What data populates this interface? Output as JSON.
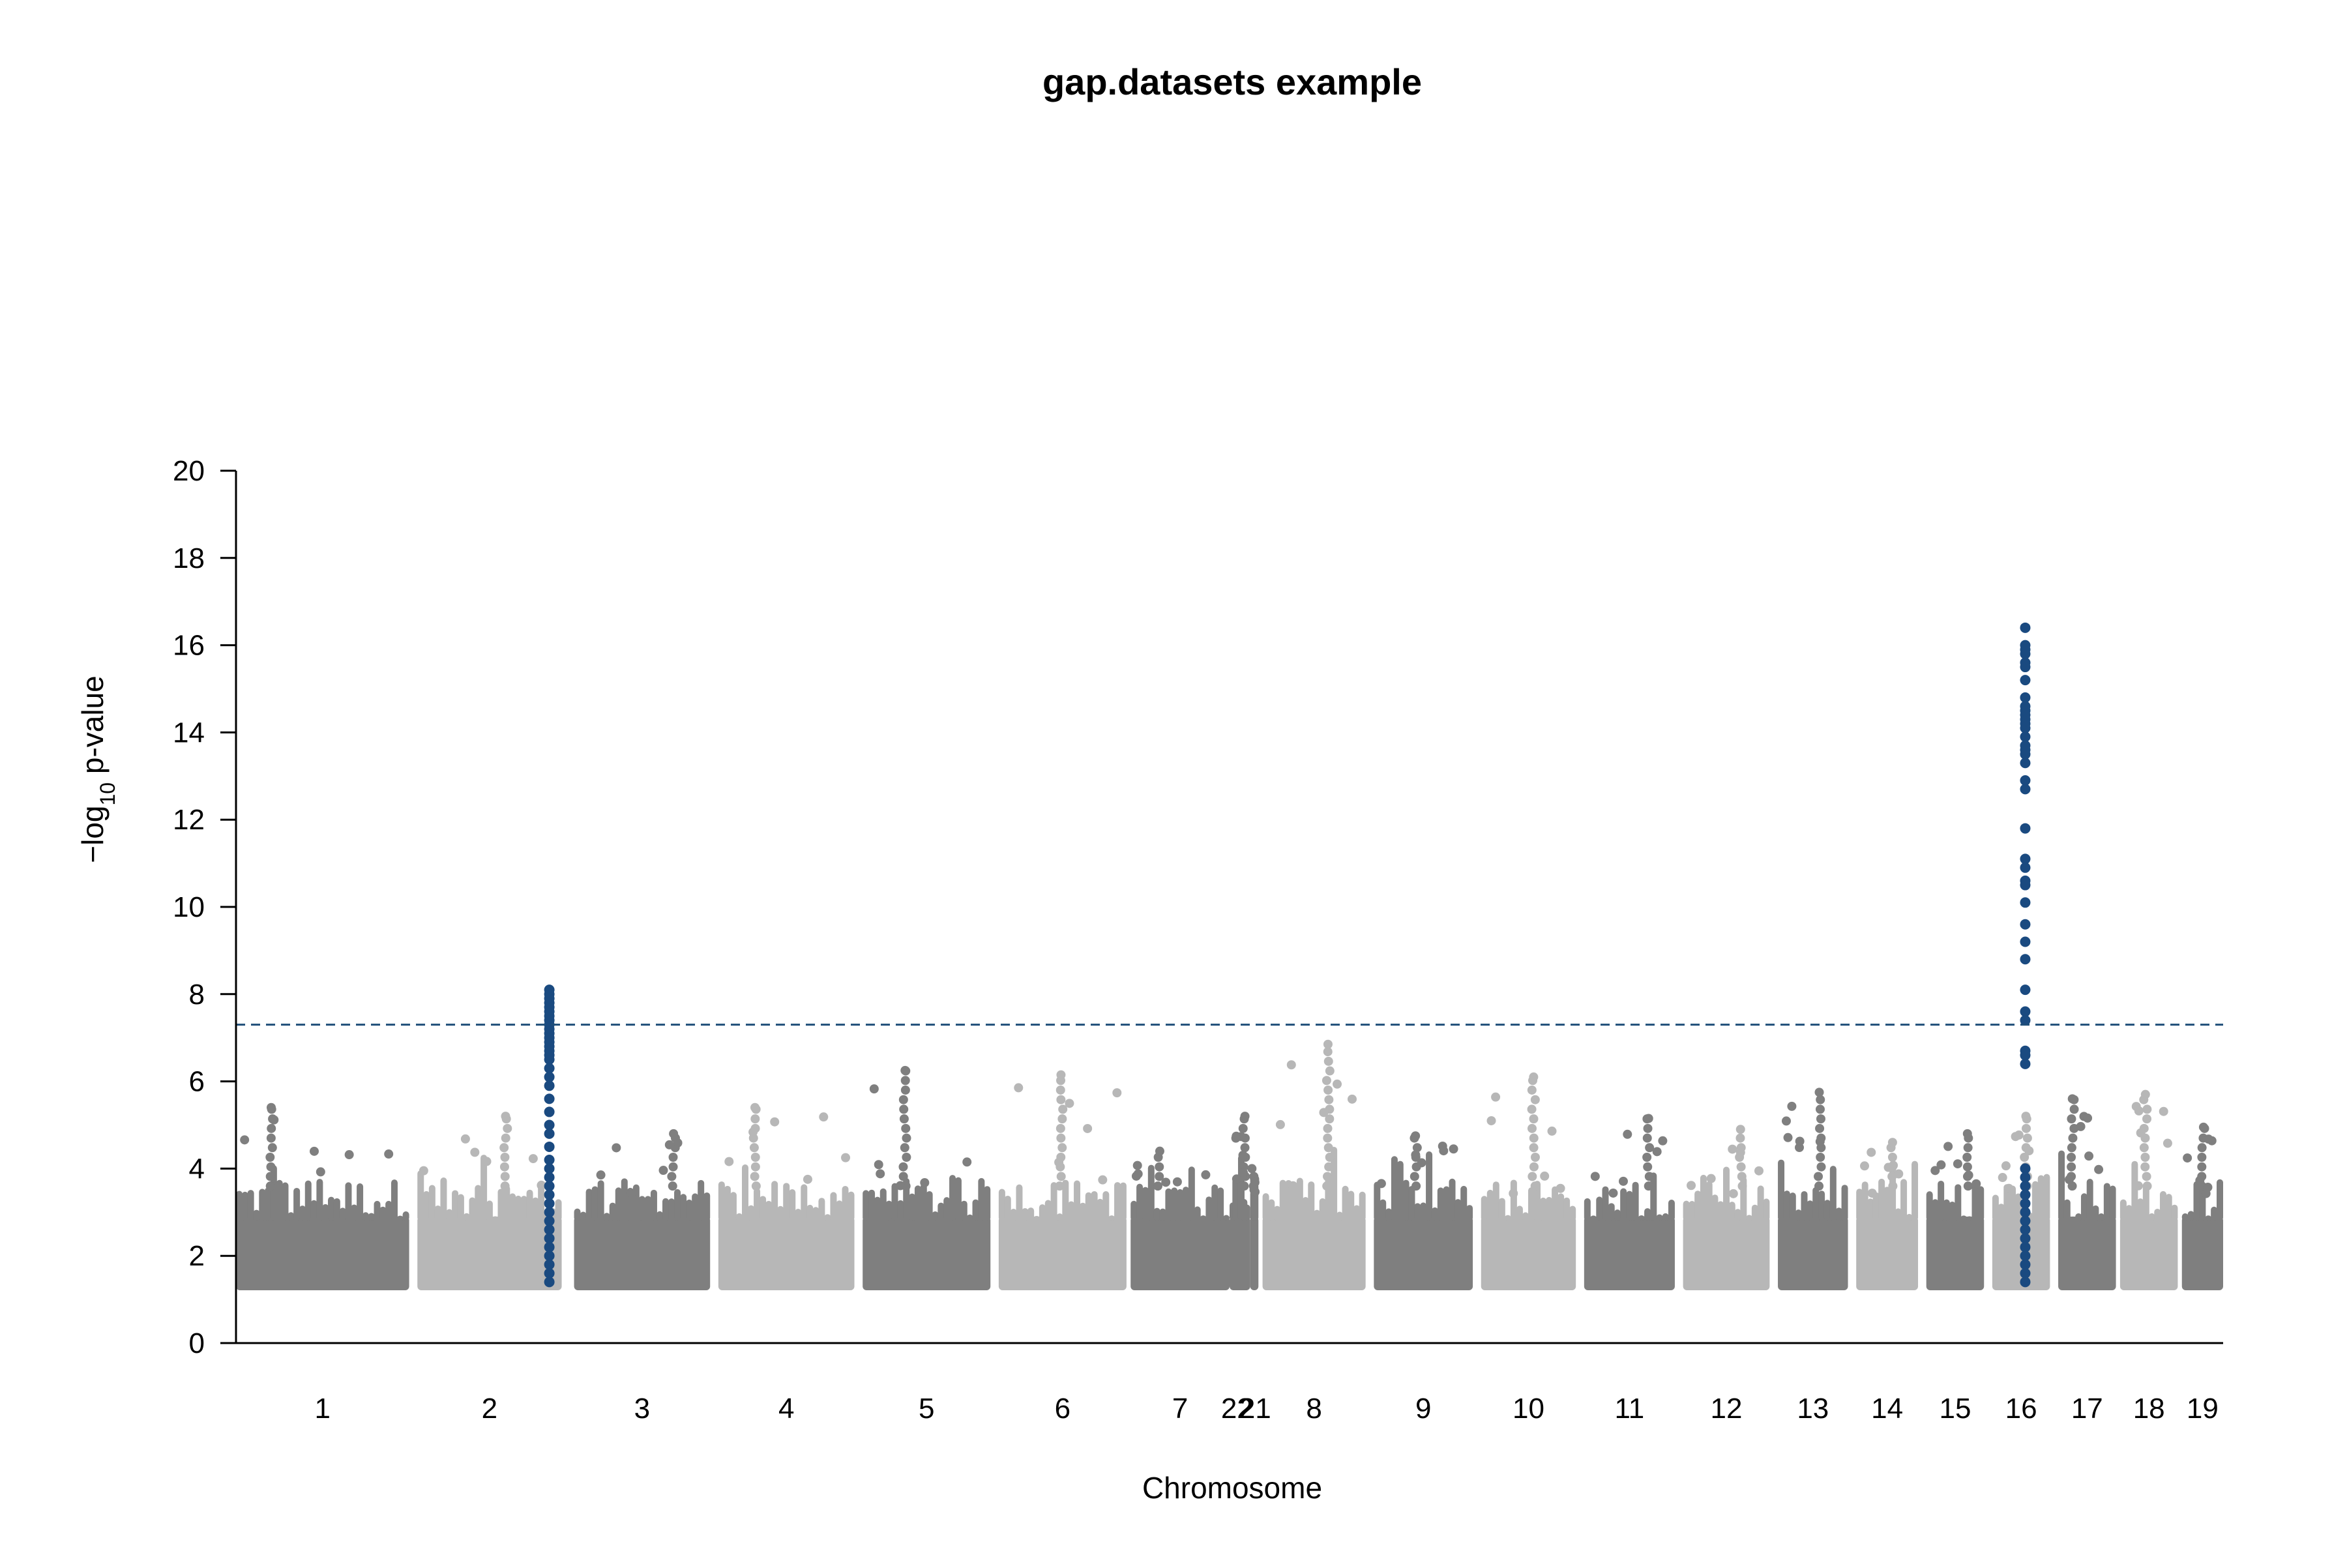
{
  "chart_data": {
    "type": "scatter",
    "subtype": "manhattan",
    "title": "gap.datasets example",
    "xlabel": "Chromosome",
    "ylabel": {
      "prefix": "−log",
      "subscript": "10",
      "suffix": " p-value"
    },
    "ylim": [
      0,
      20
    ],
    "yticks": [
      "0",
      "2",
      "4",
      "6",
      "8",
      "10",
      "12",
      "14",
      "16",
      "18",
      "20"
    ],
    "grid": false,
    "legend": "none",
    "significance_threshold": 7.3,
    "threshold_color": "#1f4e79",
    "colors": {
      "dark": "#7f7f7f",
      "light": "#b7b7b7",
      "highlight": "#1a4a80"
    },
    "baseline_min": 1.3,
    "chromosomes": [
      {
        "label": "1",
        "start": 0,
        "end": 0.21,
        "peak": 5.4,
        "tone": "dark"
      },
      {
        "label": "2",
        "start": 0.22,
        "end": 0.395,
        "peak": 5.2,
        "tone": "light"
      },
      {
        "label": "3",
        "start": 0.41,
        "end": 0.575,
        "peak": 4.8,
        "tone": "dark"
      },
      {
        "label": "4",
        "start": 0.585,
        "end": 0.75,
        "peak": 5.4,
        "tone": "light"
      },
      {
        "label": "5",
        "start": 0.76,
        "end": 0.915,
        "peak": 6.25,
        "tone": "dark"
      },
      {
        "label": "6",
        "start": 0.925,
        "end": 1.08,
        "peak": 6.15,
        "tone": "light"
      },
      {
        "label": "7",
        "start": 1.085,
        "end": 1.205,
        "peak": 4.4,
        "tone": "dark"
      },
      {
        "label": "22",
        "start": 1.205,
        "end": 1.23,
        "peak": 5.2,
        "tone": "dark"
      },
      {
        "label": "21",
        "start": 1.23,
        "end": 1.24,
        "peak": 4.0,
        "tone": "dark"
      },
      {
        "label": "8",
        "start": 1.245,
        "end": 1.37,
        "peak": 6.85,
        "tone": "light"
      },
      {
        "label": "9",
        "start": 1.38,
        "end": 1.5,
        "peak": 4.75,
        "tone": "dark"
      },
      {
        "label": "10",
        "start": 1.51,
        "end": 1.625,
        "peak": 6.1,
        "tone": "light"
      },
      {
        "label": "11",
        "start": 1.635,
        "end": 1.745,
        "peak": 5.15,
        "tone": "dark"
      },
      {
        "label": "12",
        "start": 1.755,
        "end": 1.86,
        "peak": 4.9,
        "tone": "light"
      },
      {
        "label": "13",
        "start": 1.87,
        "end": 1.955,
        "peak": 5.75,
        "tone": "dark"
      },
      {
        "label": "14",
        "start": 1.965,
        "end": 2.04,
        "peak": 4.6,
        "tone": "light"
      },
      {
        "label": "15",
        "start": 2.05,
        "end": 2.12,
        "peak": 4.8,
        "tone": "dark"
      },
      {
        "label": "16",
        "start": 2.13,
        "end": 2.2,
        "peak": 5.2,
        "tone": "light"
      },
      {
        "label": "17",
        "start": 2.21,
        "end": 2.28,
        "peak": 5.6,
        "tone": "dark"
      },
      {
        "label": "18",
        "start": 2.285,
        "end": 2.355,
        "peak": 5.7,
        "tone": "light"
      },
      {
        "label": "19",
        "start": 2.36,
        "end": 2.41,
        "peak": 4.95,
        "tone": "dark"
      }
    ],
    "highlight_loci": [
      {
        "chromosome": "2",
        "x": 0.38,
        "y": [
          1.4,
          1.6,
          1.8,
          2.0,
          2.2,
          2.4,
          2.6,
          2.8,
          3.0,
          3.2,
          3.4,
          3.6,
          3.8,
          4.0,
          4.2,
          4.5,
          4.8,
          5.0,
          5.3,
          5.6,
          5.9,
          6.1,
          6.3,
          6.5,
          6.6,
          6.7,
          6.8,
          6.9,
          7.0,
          7.1,
          7.2,
          7.3,
          7.4,
          7.5,
          7.6,
          7.7,
          7.8,
          7.9,
          8.0,
          8.1
        ]
      },
      {
        "chromosome": "16",
        "x": 2.17,
        "y": [
          1.4,
          1.6,
          1.8,
          2.0,
          2.2,
          2.4,
          2.6,
          2.8,
          3.0,
          3.2,
          3.4,
          3.6,
          3.8,
          4.0,
          6.4,
          6.6,
          6.7,
          7.4,
          7.6,
          8.1,
          8.8,
          9.2,
          9.6,
          10.1,
          10.5,
          10.6,
          10.9,
          11.1,
          11.8,
          12.7,
          12.9,
          13.3,
          13.5,
          13.6,
          13.7,
          13.9,
          14.1,
          14.2,
          14.3,
          14.4,
          14.5,
          14.6,
          14.8,
          15.2,
          15.5,
          15.6,
          15.8,
          15.9,
          16.0,
          16.4
        ]
      }
    ]
  }
}
